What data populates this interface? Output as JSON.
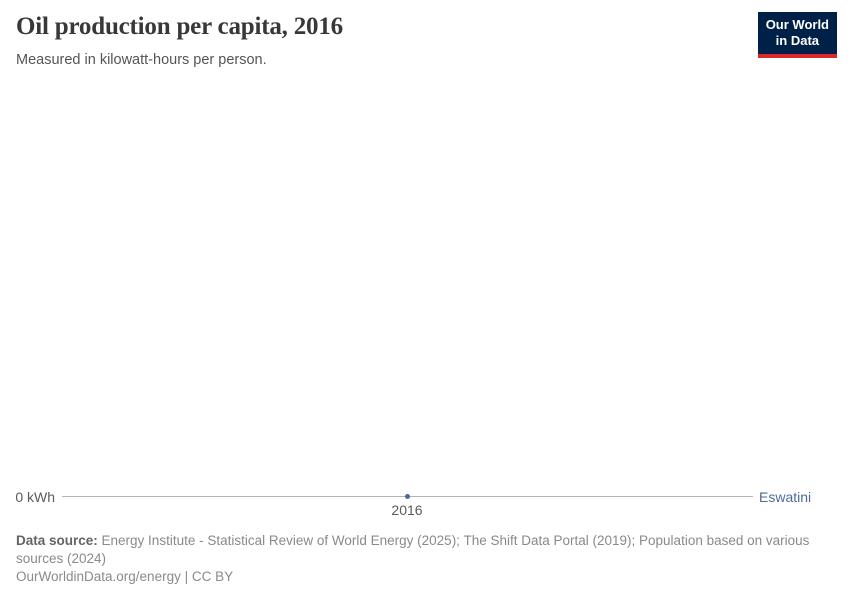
{
  "header": {
    "title": "Oil production per capita, 2016",
    "subtitle": "Measured in kilowatt-hours per person.",
    "logo": {
      "line1": "Our World",
      "line2": "in Data"
    }
  },
  "chart": {
    "y_zero_label": "0 kWh",
    "x_tick_label": "2016",
    "entity_label": "Eswatini"
  },
  "chart_data": {
    "type": "line",
    "title": "Oil production per capita, 2016",
    "subtitle": "Measured in kilowatt-hours per person.",
    "unit": "kilowatt-hours per person",
    "xlabel": "",
    "ylabel": "kilowatt-hours per person",
    "series": [
      {
        "name": "Eswatini",
        "x": [
          2016
        ],
        "values": [
          0
        ],
        "color": "#4c6a9c"
      }
    ],
    "x_ticks": [
      "2016"
    ],
    "y_ticks": [
      "0 kWh"
    ],
    "ylim": [
      0,
      null
    ],
    "grid": false,
    "legend_position": "right-end-of-line"
  },
  "footer": {
    "source_label": "Data source:",
    "source_text": " Energy Institute - Statistical Review of World Energy (2025); The Shift Data Portal (2019); Population based on various sources (2024)",
    "attribution": "OurWorldinData.org/energy | CC BY"
  },
  "colors": {
    "accent_blue": "#4c6a9c",
    "logo_navy": "#002147",
    "logo_red": "#dc2a2a",
    "axis_line_gray": "#b3b3bb",
    "title_gray": "#383838",
    "subtitle_gray": "#555555",
    "footer_gray": "#8a8a8a"
  }
}
